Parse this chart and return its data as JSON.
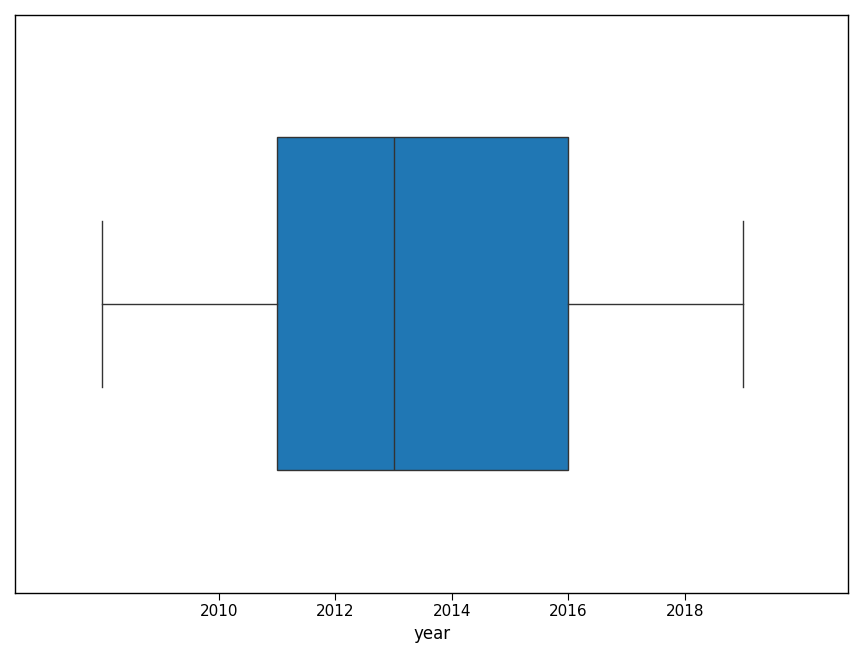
{
  "q1": 2011,
  "median": 2013,
  "q3": 2016,
  "whisker_low": 2008,
  "whisker_high": 2019,
  "box_color": "#2077b4",
  "xlabel": "year",
  "figsize": [
    8.63,
    6.58
  ],
  "dpi": 100,
  "xticks": [
    2010,
    2012,
    2014,
    2016,
    2018
  ],
  "xlim": [
    2006.5,
    2020.8
  ],
  "ylim": [
    -0.65,
    0.65
  ]
}
